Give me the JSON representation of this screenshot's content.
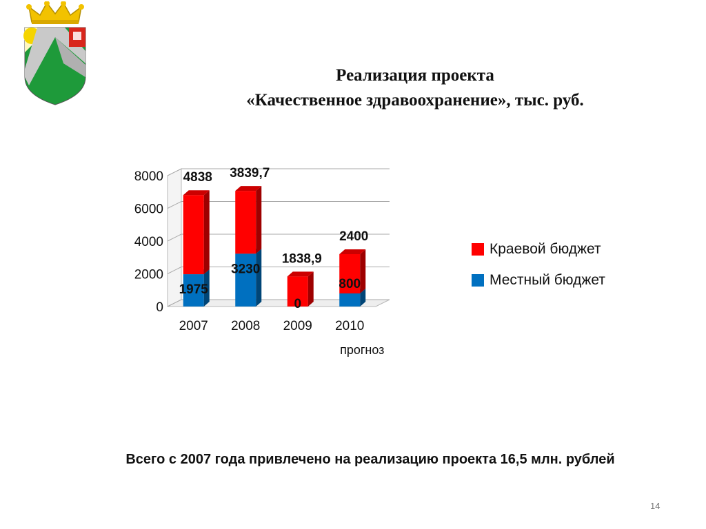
{
  "slide": {
    "title_line1": "Реализация проекта",
    "title_line2": "«Качественное здравоохранение», тыс. руб.",
    "footer": "Всего с 2007 года привлечено на реализацию проекта 16,5 млн. рублей",
    "page_number": "14"
  },
  "colors": {
    "regional": "#ff0000",
    "local": "#0070c0"
  },
  "chart_data": {
    "type": "bar",
    "stacked": true,
    "categories": [
      "2007",
      "2008",
      "2009",
      "2010"
    ],
    "category_sublabels": [
      "",
      "",
      "",
      "прогноз"
    ],
    "series": [
      {
        "name": "Местный бюджет",
        "values": [
          1975,
          3230,
          0,
          800
        ],
        "labels": [
          "1975",
          "3230",
          "0",
          "800"
        ]
      },
      {
        "name": "Краевой бюджет",
        "values": [
          4838,
          3839.7,
          1838.9,
          2400
        ],
        "labels": [
          "4838",
          "3839,7",
          "1838,9",
          "2400"
        ]
      }
    ],
    "ylim": [
      0,
      8000
    ],
    "yticks": [
      0,
      2000,
      4000,
      6000,
      8000
    ],
    "grid": true,
    "legend_position": "right"
  }
}
